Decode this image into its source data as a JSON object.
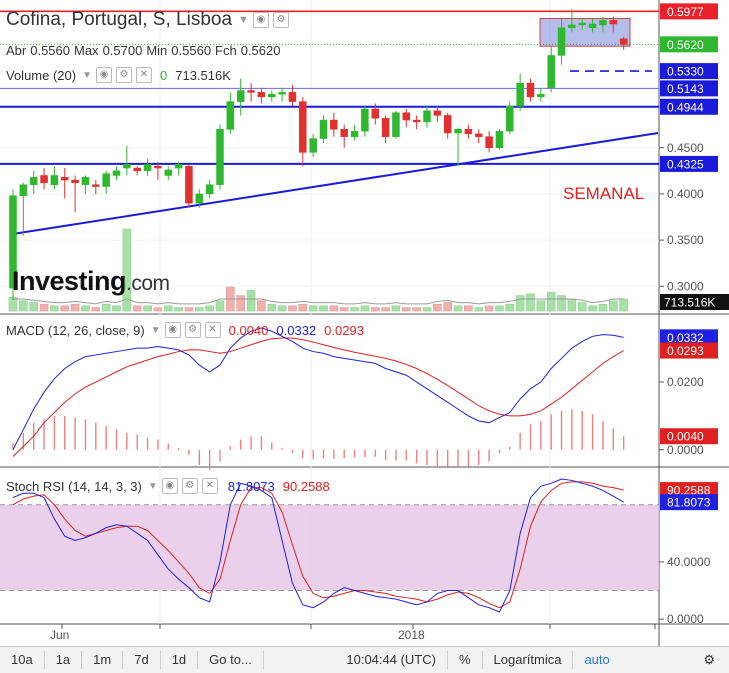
{
  "header": {
    "title": "Cofina, Portugal, S, Lisboa",
    "ohlc": {
      "open_label": "Abr",
      "open": "0.5560",
      "high_label": "Max",
      "high": "0.5700",
      "low_label": "Min",
      "low": "0.5560",
      "close_label": "Fch",
      "close": "0.5620"
    },
    "volume_label": "Volume (20)",
    "volume_zero": "0",
    "volume_value": "713.516K"
  },
  "watermark": {
    "brand": "Investing",
    "suffix": ".com"
  },
  "annotation": "SEMANAL",
  "colors": {
    "up": "#2eb82e",
    "down": "#e03030",
    "trendline": "#1a1adb",
    "resistance": "#e8202a",
    "macd": "#2020e0",
    "signal": "#e02020",
    "stoch_band": "#e6c8e6"
  },
  "price_axis": {
    "ticks": [
      "0.4500",
      "0.4000",
      "0.3500",
      "0.3000"
    ],
    "badges": [
      {
        "value": "0.5977",
        "color": "#e8202a"
      },
      {
        "value": "0.5620",
        "color": "#2eb82e"
      },
      {
        "value": "0.5330",
        "color": "#1a1adb"
      },
      {
        "value": "0.5143",
        "color": "#1a1adb"
      },
      {
        "value": "0.4944",
        "color": "#1a1adb"
      },
      {
        "value": "0.4325",
        "color": "#1a1adb"
      }
    ],
    "volume_badge": "713.516K"
  },
  "chart_data": [
    {
      "type": "candlestick",
      "title": "Cofina, Portugal, S, Lisboa",
      "ylim": [
        0.27,
        0.61
      ],
      "x_labels": [
        "Jun",
        "2018"
      ],
      "horizontal_levels": [
        0.5977,
        0.533,
        0.5143,
        0.4944,
        0.4325
      ],
      "candles": [
        [
          0.298,
          0.398,
          0.285,
          0.405
        ],
        [
          0.398,
          0.41,
          0.355,
          0.412
        ],
        [
          0.41,
          0.418,
          0.4,
          0.425
        ],
        [
          0.42,
          0.412,
          0.405,
          0.428
        ],
        [
          0.41,
          0.42,
          0.405,
          0.43
        ],
        [
          0.418,
          0.415,
          0.395,
          0.428
        ],
        [
          0.415,
          0.412,
          0.38,
          0.42
        ],
        [
          0.41,
          0.418,
          0.4,
          0.42
        ],
        [
          0.41,
          0.408,
          0.4,
          0.415
        ],
        [
          0.408,
          0.422,
          0.4,
          0.425
        ],
        [
          0.42,
          0.425,
          0.415,
          0.43
        ],
        [
          0.428,
          0.432,
          0.42,
          0.452
        ],
        [
          0.428,
          0.425,
          0.42,
          0.43
        ],
        [
          0.425,
          0.432,
          0.42,
          0.438
        ],
        [
          0.43,
          0.428,
          0.415,
          0.435
        ],
        [
          0.42,
          0.426,
          0.415,
          0.43
        ],
        [
          0.428,
          0.432,
          0.42,
          0.435
        ],
        [
          0.43,
          0.39,
          0.385,
          0.432
        ],
        [
          0.39,
          0.4,
          0.385,
          0.405
        ],
        [
          0.4,
          0.41,
          0.395,
          0.415
        ],
        [
          0.41,
          0.47,
          0.405,
          0.475
        ],
        [
          0.47,
          0.5,
          0.465,
          0.51
        ],
        [
          0.5,
          0.512,
          0.485,
          0.525
        ],
        [
          0.512,
          0.51,
          0.5,
          0.52
        ],
        [
          0.51,
          0.505,
          0.498,
          0.515
        ],
        [
          0.505,
          0.508,
          0.5,
          0.512
        ],
        [
          0.508,
          0.51,
          0.5,
          0.515
        ],
        [
          0.51,
          0.5,
          0.495,
          0.518
        ],
        [
          0.5,
          0.445,
          0.43,
          0.505
        ],
        [
          0.445,
          0.46,
          0.44,
          0.465
        ],
        [
          0.46,
          0.48,
          0.455,
          0.485
        ],
        [
          0.48,
          0.47,
          0.462,
          0.488
        ],
        [
          0.47,
          0.462,
          0.45,
          0.475
        ],
        [
          0.462,
          0.468,
          0.458,
          0.475
        ],
        [
          0.468,
          0.492,
          0.462,
          0.495
        ],
        [
          0.492,
          0.482,
          0.475,
          0.498
        ],
        [
          0.482,
          0.462,
          0.455,
          0.485
        ],
        [
          0.462,
          0.488,
          0.46,
          0.49
        ],
        [
          0.488,
          0.48,
          0.472,
          0.492
        ],
        [
          0.48,
          0.478,
          0.47,
          0.485
        ],
        [
          0.478,
          0.49,
          0.472,
          0.495
        ],
        [
          0.49,
          0.485,
          0.478,
          0.495
        ],
        [
          0.485,
          0.466,
          0.46,
          0.488
        ],
        [
          0.466,
          0.47,
          0.43,
          0.472
        ],
        [
          0.47,
          0.465,
          0.46,
          0.475
        ],
        [
          0.465,
          0.462,
          0.455,
          0.47
        ],
        [
          0.462,
          0.45,
          0.445,
          0.468
        ],
        [
          0.45,
          0.468,
          0.448,
          0.47
        ],
        [
          0.468,
          0.495,
          0.465,
          0.5
        ],
        [
          0.495,
          0.52,
          0.49,
          0.53
        ],
        [
          0.52,
          0.505,
          0.5,
          0.525
        ],
        [
          0.505,
          0.508,
          0.5,
          0.515
        ],
        [
          0.515,
          0.55,
          0.51,
          0.56
        ],
        [
          0.55,
          0.58,
          0.54,
          0.59
        ],
        [
          0.58,
          0.583,
          0.575,
          0.6
        ],
        [
          0.583,
          0.585,
          0.578,
          0.59
        ],
        [
          0.58,
          0.584,
          0.575,
          0.59
        ],
        [
          0.583,
          0.588,
          0.575,
          0.592
        ],
        [
          0.588,
          0.584,
          0.575,
          0.592
        ],
        [
          0.568,
          0.562,
          0.556,
          0.57
        ]
      ],
      "volume": [
        {
          "v": 8,
          "up": true
        },
        {
          "v": 6,
          "up": true
        },
        {
          "v": 5,
          "up": true
        },
        {
          "v": 4,
          "up": false
        },
        {
          "v": 3,
          "up": true
        },
        {
          "v": 3,
          "up": false
        },
        {
          "v": 4,
          "up": false
        },
        {
          "v": 3,
          "up": true
        },
        {
          "v": 2,
          "up": false
        },
        {
          "v": 4,
          "up": true
        },
        {
          "v": 3,
          "up": true
        },
        {
          "v": 48,
          "up": true
        },
        {
          "v": 3,
          "up": false
        },
        {
          "v": 3,
          "up": true
        },
        {
          "v": 2,
          "up": false
        },
        {
          "v": 3,
          "up": true
        },
        {
          "v": 2,
          "up": true
        },
        {
          "v": 2,
          "up": false
        },
        {
          "v": 2,
          "up": true
        },
        {
          "v": 3,
          "up": true
        },
        {
          "v": 6,
          "up": true
        },
        {
          "v": 14,
          "up": false
        },
        {
          "v": 9,
          "up": false
        },
        {
          "v": 12,
          "up": true
        },
        {
          "v": 6,
          "up": false
        },
        {
          "v": 4,
          "up": true
        },
        {
          "v": 3,
          "up": true
        },
        {
          "v": 3,
          "up": false
        },
        {
          "v": 4,
          "up": false
        },
        {
          "v": 3,
          "up": true
        },
        {
          "v": 3,
          "up": true
        },
        {
          "v": 3,
          "up": false
        },
        {
          "v": 2,
          "up": false
        },
        {
          "v": 2,
          "up": true
        },
        {
          "v": 3,
          "up": true
        },
        {
          "v": 2,
          "up": false
        },
        {
          "v": 2,
          "up": false
        },
        {
          "v": 3,
          "up": true
        },
        {
          "v": 2,
          "up": false
        },
        {
          "v": 2,
          "up": false
        },
        {
          "v": 2,
          "up": true
        },
        {
          "v": 4,
          "up": false
        },
        {
          "v": 5,
          "up": false
        },
        {
          "v": 3,
          "up": true
        },
        {
          "v": 3,
          "up": false
        },
        {
          "v": 2,
          "up": true
        },
        {
          "v": 3,
          "up": false
        },
        {
          "v": 3,
          "up": true
        },
        {
          "v": 4,
          "up": true
        },
        {
          "v": 9,
          "up": true
        },
        {
          "v": 10,
          "up": true
        },
        {
          "v": 6,
          "up": true
        },
        {
          "v": 11,
          "up": true
        },
        {
          "v": 9,
          "up": true
        },
        {
          "v": 7,
          "up": true
        },
        {
          "v": 5,
          "up": true
        },
        {
          "v": 3,
          "up": true
        },
        {
          "v": 4,
          "up": true
        },
        {
          "v": 6,
          "up": true
        },
        {
          "v": 7,
          "up": true
        }
      ]
    },
    {
      "type": "line",
      "title": "MACD (12, 26, close, 9)",
      "values_shown": {
        "histogram": "0.0040",
        "macd": "0.0332",
        "signal": "0.0293"
      },
      "y_ticks": [
        "0.0200",
        "0.0000"
      ],
      "ylim": [
        -0.0045,
        0.0395
      ],
      "series": [
        {
          "name": "MACD",
          "values": [
            0.0,
            0.006,
            0.012,
            0.017,
            0.021,
            0.024,
            0.026,
            0.0275,
            0.028,
            0.0285,
            0.029,
            0.0295,
            0.03,
            0.03,
            0.0305,
            0.03,
            0.0295,
            0.028,
            0.025,
            0.023,
            0.025,
            0.03,
            0.033,
            0.035,
            0.036,
            0.035,
            0.0335,
            0.032,
            0.03,
            0.029,
            0.0285,
            0.0275,
            0.027,
            0.0265,
            0.026,
            0.0255,
            0.024,
            0.023,
            0.022,
            0.02,
            0.018,
            0.016,
            0.014,
            0.012,
            0.01,
            0.0085,
            0.008,
            0.0095,
            0.011,
            0.015,
            0.018,
            0.02,
            0.024,
            0.027,
            0.03,
            0.032,
            0.0335,
            0.034,
            0.0338,
            0.0332
          ]
        },
        {
          "name": "Signal",
          "values": [
            -0.002,
            0.001,
            0.004,
            0.008,
            0.011,
            0.014,
            0.0165,
            0.0185,
            0.02,
            0.0215,
            0.023,
            0.0245,
            0.0255,
            0.0265,
            0.0275,
            0.0282,
            0.029,
            0.0295,
            0.0295,
            0.029,
            0.0285,
            0.029,
            0.03,
            0.031,
            0.032,
            0.0328,
            0.033,
            0.033,
            0.0325,
            0.0318,
            0.031,
            0.0302,
            0.0295,
            0.0288,
            0.0282,
            0.0276,
            0.027,
            0.0262,
            0.0252,
            0.024,
            0.0225,
            0.0208,
            0.019,
            0.017,
            0.015,
            0.013,
            0.0115,
            0.0105,
            0.01,
            0.01,
            0.0105,
            0.0115,
            0.0135,
            0.0155,
            0.018,
            0.0205,
            0.023,
            0.0255,
            0.0275,
            0.0293
          ]
        },
        {
          "name": "Histogram",
          "values": [
            0.002,
            0.005,
            0.008,
            0.009,
            0.01,
            0.01,
            0.0095,
            0.009,
            0.008,
            0.007,
            0.006,
            0.005,
            0.0045,
            0.0035,
            0.003,
            0.0018,
            0.0005,
            -0.0015,
            -0.0045,
            -0.006,
            -0.0035,
            0.001,
            0.003,
            0.004,
            0.004,
            0.0022,
            0.0005,
            -0.001,
            -0.0025,
            -0.0028,
            -0.0025,
            -0.0027,
            -0.0025,
            -0.0023,
            -0.0022,
            -0.0021,
            -0.003,
            -0.0032,
            -0.0032,
            -0.004,
            -0.0045,
            -0.0048,
            -0.005,
            -0.005,
            -0.005,
            -0.0045,
            -0.0035,
            -0.001,
            0.001,
            0.005,
            0.0075,
            0.0085,
            0.0105,
            0.0115,
            0.012,
            0.0115,
            0.0105,
            0.0085,
            0.0063,
            0.004
          ]
        }
      ]
    },
    {
      "type": "line",
      "title": "Stoch RSI (14, 14, 3, 3)",
      "values_shown": {
        "k": "81.8073",
        "d": "90.2588"
      },
      "y_ticks": [
        "40.0000",
        "0.0000"
      ],
      "ylim": [
        -2,
        105
      ],
      "band": [
        20,
        80
      ],
      "series": [
        {
          "name": "%K",
          "values": [
            85,
            88,
            88,
            85,
            70,
            58,
            55,
            57,
            60,
            64,
            66,
            65,
            60,
            55,
            45,
            35,
            28,
            22,
            15,
            12,
            40,
            80,
            95,
            93,
            90,
            85,
            55,
            25,
            10,
            8,
            12,
            18,
            22,
            20,
            18,
            16,
            15,
            14,
            12,
            10,
            12,
            18,
            20,
            20,
            15,
            10,
            8,
            5,
            20,
            60,
            85,
            93,
            95,
            98,
            97,
            95,
            93,
            90,
            86,
            81.8
          ]
        },
        {
          "name": "%D",
          "values": [
            80,
            84,
            86,
            87,
            80,
            70,
            62,
            58,
            60,
            62,
            64,
            65,
            65,
            62,
            55,
            48,
            40,
            32,
            22,
            18,
            28,
            55,
            80,
            92,
            92,
            88,
            75,
            52,
            30,
            18,
            15,
            16,
            18,
            20,
            20,
            19,
            18,
            16,
            15,
            14,
            12,
            14,
            17,
            19,
            18,
            15,
            11,
            8,
            12,
            35,
            65,
            82,
            90,
            95,
            96,
            96,
            95,
            93,
            92,
            90.3
          ]
        }
      ]
    }
  ],
  "toolbar": {
    "ranges": [
      "10a",
      "1a",
      "1m",
      "7d",
      "1d"
    ],
    "goto": "Go to...",
    "time": "10:04:44 (UTC)",
    "pct": "%",
    "log": "Logarítmica",
    "auto": "auto"
  }
}
